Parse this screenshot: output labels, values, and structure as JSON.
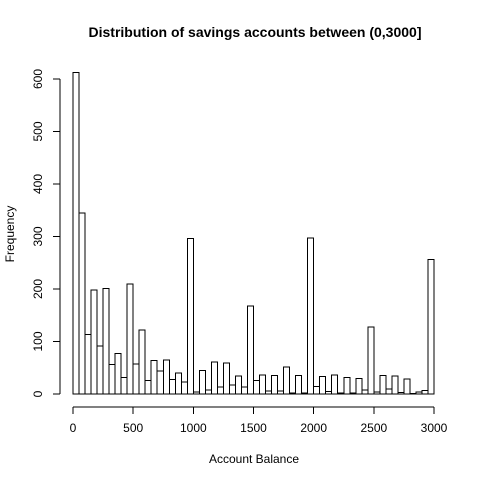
{
  "chart_data": {
    "type": "bar",
    "title": "Distribution of savings accounts between (0,3000]",
    "xlabel": "Account Balance",
    "ylabel": "Frequency",
    "xlim": [
      0,
      3000
    ],
    "ylim": [
      0,
      600
    ],
    "x_ticks": [
      0,
      500,
      1000,
      1500,
      2000,
      2500,
      3000
    ],
    "y_ticks": [
      0,
      100,
      200,
      300,
      400,
      500,
      600
    ],
    "bin_width": 50,
    "bins": [
      {
        "start": 0,
        "end": 50,
        "count": 612
      },
      {
        "start": 50,
        "end": 100,
        "count": 345
      },
      {
        "start": 100,
        "end": 150,
        "count": 113
      },
      {
        "start": 150,
        "end": 200,
        "count": 198
      },
      {
        "start": 200,
        "end": 250,
        "count": 91
      },
      {
        "start": 250,
        "end": 300,
        "count": 201
      },
      {
        "start": 300,
        "end": 350,
        "count": 56
      },
      {
        "start": 350,
        "end": 400,
        "count": 77
      },
      {
        "start": 400,
        "end": 450,
        "count": 31
      },
      {
        "start": 450,
        "end": 500,
        "count": 210
      },
      {
        "start": 500,
        "end": 550,
        "count": 57
      },
      {
        "start": 550,
        "end": 600,
        "count": 122
      },
      {
        "start": 600,
        "end": 650,
        "count": 26
      },
      {
        "start": 650,
        "end": 700,
        "count": 64
      },
      {
        "start": 700,
        "end": 750,
        "count": 44
      },
      {
        "start": 750,
        "end": 800,
        "count": 65
      },
      {
        "start": 800,
        "end": 850,
        "count": 28
      },
      {
        "start": 850,
        "end": 900,
        "count": 40
      },
      {
        "start": 900,
        "end": 950,
        "count": 23
      },
      {
        "start": 950,
        "end": 1000,
        "count": 296
      },
      {
        "start": 1000,
        "end": 1050,
        "count": 4
      },
      {
        "start": 1050,
        "end": 1100,
        "count": 45
      },
      {
        "start": 1100,
        "end": 1150,
        "count": 8
      },
      {
        "start": 1150,
        "end": 1200,
        "count": 61
      },
      {
        "start": 1200,
        "end": 1250,
        "count": 13
      },
      {
        "start": 1250,
        "end": 1300,
        "count": 59
      },
      {
        "start": 1300,
        "end": 1350,
        "count": 17
      },
      {
        "start": 1350,
        "end": 1400,
        "count": 34
      },
      {
        "start": 1400,
        "end": 1450,
        "count": 13
      },
      {
        "start": 1450,
        "end": 1500,
        "count": 168
      },
      {
        "start": 1500,
        "end": 1550,
        "count": 26
      },
      {
        "start": 1550,
        "end": 1600,
        "count": 36
      },
      {
        "start": 1600,
        "end": 1650,
        "count": 6
      },
      {
        "start": 1650,
        "end": 1700,
        "count": 35
      },
      {
        "start": 1700,
        "end": 1750,
        "count": 6
      },
      {
        "start": 1750,
        "end": 1800,
        "count": 51
      },
      {
        "start": 1800,
        "end": 1850,
        "count": 2
      },
      {
        "start": 1850,
        "end": 1900,
        "count": 35
      },
      {
        "start": 1900,
        "end": 1950,
        "count": 2
      },
      {
        "start": 1950,
        "end": 2000,
        "count": 297
      },
      {
        "start": 2000,
        "end": 2050,
        "count": 14
      },
      {
        "start": 2050,
        "end": 2100,
        "count": 33
      },
      {
        "start": 2100,
        "end": 2150,
        "count": 5
      },
      {
        "start": 2150,
        "end": 2200,
        "count": 36
      },
      {
        "start": 2200,
        "end": 2250,
        "count": 2
      },
      {
        "start": 2250,
        "end": 2300,
        "count": 31
      },
      {
        "start": 2300,
        "end": 2350,
        "count": 2
      },
      {
        "start": 2350,
        "end": 2400,
        "count": 30
      },
      {
        "start": 2400,
        "end": 2450,
        "count": 8
      },
      {
        "start": 2450,
        "end": 2500,
        "count": 128
      },
      {
        "start": 2500,
        "end": 2550,
        "count": 4
      },
      {
        "start": 2550,
        "end": 2600,
        "count": 35
      },
      {
        "start": 2600,
        "end": 2650,
        "count": 10
      },
      {
        "start": 2650,
        "end": 2700,
        "count": 34
      },
      {
        "start": 2700,
        "end": 2750,
        "count": 3
      },
      {
        "start": 2750,
        "end": 2800,
        "count": 29
      },
      {
        "start": 2800,
        "end": 2850,
        "count": 1
      },
      {
        "start": 2850,
        "end": 2900,
        "count": 4
      },
      {
        "start": 2900,
        "end": 2950,
        "count": 7
      },
      {
        "start": 2950,
        "end": 3000,
        "count": 256
      }
    ]
  }
}
